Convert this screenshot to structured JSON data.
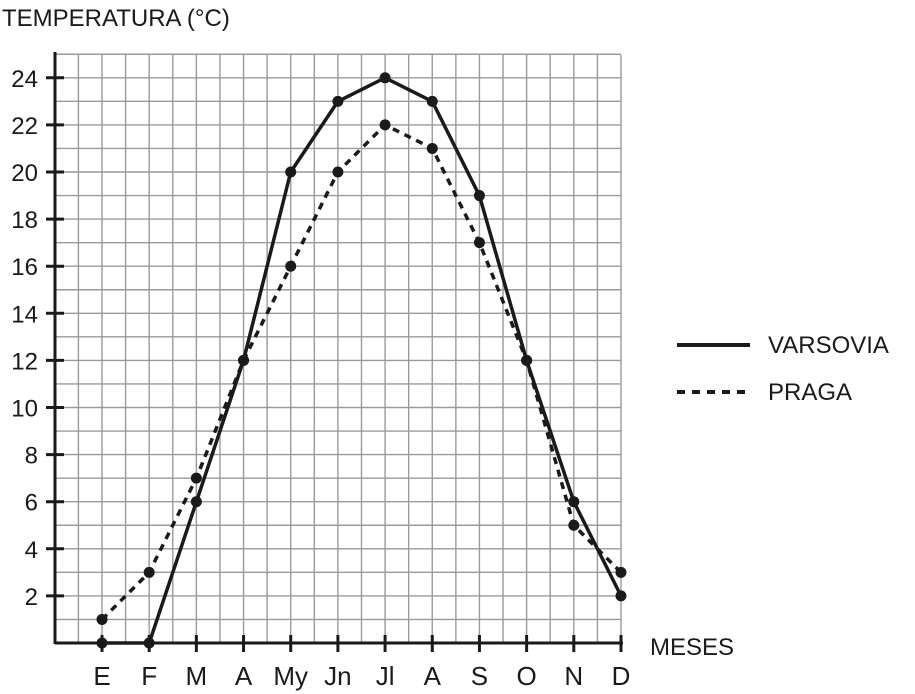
{
  "chart_data": {
    "type": "line",
    "ylabel": "TEMPERATURA (°C)",
    "xlabel": "MESES",
    "categories": [
      "E",
      "F",
      "M",
      "A",
      "My",
      "Jn",
      "Jl",
      "A",
      "S",
      "O",
      "N",
      "D"
    ],
    "ylim": [
      0,
      25
    ],
    "yticks": [
      2,
      4,
      6,
      8,
      10,
      12,
      14,
      16,
      18,
      20,
      22,
      24
    ],
    "grid": true,
    "legend_position": "right",
    "series": [
      {
        "name": "VARSOVIA",
        "style": "solid",
        "color": "#1a1a1a",
        "values": [
          0,
          0,
          6,
          12,
          20,
          23,
          24,
          23,
          19,
          12,
          6,
          2
        ]
      },
      {
        "name": "PRAGA",
        "style": "dotted",
        "color": "#1a1a1a",
        "values": [
          1,
          3,
          7,
          12,
          16,
          20,
          22,
          21,
          17,
          12,
          5,
          3
        ]
      }
    ]
  }
}
